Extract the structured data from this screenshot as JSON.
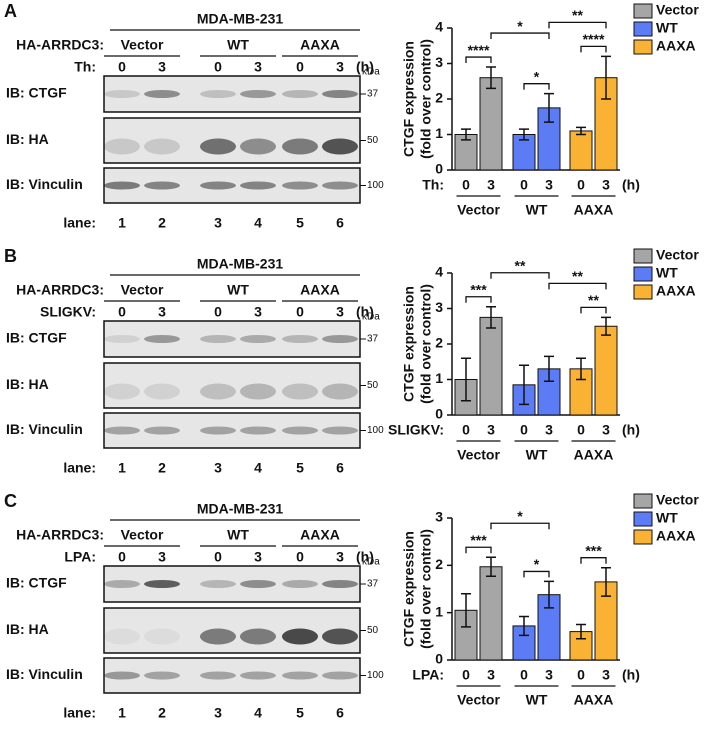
{
  "panels": [
    {
      "letter": "A",
      "blot": {
        "title": "MDA-MB-231",
        "construct_label": "HA-ARRDC3:",
        "groups": [
          "Vector",
          "WT",
          "AAXA"
        ],
        "treatment_label": "Th:",
        "times": [
          "0",
          "3",
          "0",
          "3",
          "0",
          "3"
        ],
        "time_unit": "(h)",
        "rows": [
          {
            "label": "IB: CTGF",
            "marker": "37"
          },
          {
            "label": "IB: HA",
            "marker": "50"
          },
          {
            "label": "IB: Vinculin",
            "marker": "100"
          }
        ],
        "marker_unit": "kDa",
        "lane_label": "lane:",
        "lanes": [
          "1",
          "2",
          "3",
          "4",
          "5",
          "6"
        ]
      }
    },
    {
      "letter": "B",
      "blot": {
        "title": "MDA-MB-231",
        "construct_label": "HA-ARRDC3:",
        "groups": [
          "Vector",
          "WT",
          "AAXA"
        ],
        "treatment_label": "SLIGKV:",
        "times": [
          "0",
          "3",
          "0",
          "3",
          "0",
          "3"
        ],
        "time_unit": "(h)",
        "rows": [
          {
            "label": "IB: CTGF",
            "marker": "37"
          },
          {
            "label": "IB: HA",
            "marker": "50"
          },
          {
            "label": "IB: Vinculin",
            "marker": "100"
          }
        ],
        "marker_unit": "kDa",
        "lane_label": "lane:",
        "lanes": [
          "1",
          "2",
          "3",
          "4",
          "5",
          "6"
        ]
      }
    },
    {
      "letter": "C",
      "blot": {
        "title": "MDA-MB-231",
        "construct_label": "HA-ARRDC3:",
        "groups": [
          "Vector",
          "WT",
          "AAXA"
        ],
        "treatment_label": "LPA:",
        "times": [
          "0",
          "3",
          "0",
          "3",
          "0",
          "3"
        ],
        "time_unit": "(h)",
        "rows": [
          {
            "label": "IB: CTGF",
            "marker": "37"
          },
          {
            "label": "IB: HA",
            "marker": "50"
          },
          {
            "label": "IB: Vinculin",
            "marker": "100"
          }
        ],
        "marker_unit": "kDa",
        "lane_label": "lane:",
        "lanes": [
          "1",
          "2",
          "3",
          "4",
          "5",
          "6"
        ]
      }
    }
  ],
  "chart_data": [
    {
      "type": "bar",
      "y_label": [
        "CTGF expression",
        "(fold over control)"
      ],
      "ylim": [
        0,
        4
      ],
      "yticks": [
        0,
        1,
        2,
        3,
        4
      ],
      "categories": [
        "0",
        "3"
      ],
      "treatment_label": "Th:",
      "time_unit": "(h)",
      "series": [
        {
          "name": "Vector",
          "color": "#a6a6a6",
          "values": [
            1.0,
            2.6
          ],
          "errors": [
            0.15,
            0.3
          ]
        },
        {
          "name": "WT",
          "color": "#5b7cf5",
          "values": [
            1.0,
            1.75
          ],
          "errors": [
            0.15,
            0.4
          ]
        },
        {
          "name": "AAXA",
          "color": "#f9b233",
          "values": [
            1.1,
            2.6
          ],
          "errors": [
            0.1,
            0.6
          ]
        }
      ],
      "annotations": [
        "****",
        "*",
        "****",
        "*",
        "**"
      ]
    },
    {
      "type": "bar",
      "y_label": [
        "CTGF expression",
        "(fold over control)"
      ],
      "ylim": [
        0,
        4
      ],
      "yticks": [
        0,
        1,
        2,
        3,
        4
      ],
      "categories": [
        "0",
        "3"
      ],
      "treatment_label": "SLIGKV:",
      "time_unit": "(h)",
      "series": [
        {
          "name": "Vector",
          "color": "#a6a6a6",
          "values": [
            1.0,
            2.75
          ],
          "errors": [
            0.6,
            0.3
          ]
        },
        {
          "name": "WT",
          "color": "#5b7cf5",
          "values": [
            0.85,
            1.3
          ],
          "errors": [
            0.55,
            0.35
          ]
        },
        {
          "name": "AAXA",
          "color": "#f9b233",
          "values": [
            1.3,
            2.5
          ],
          "errors": [
            0.3,
            0.25
          ]
        }
      ],
      "annotations": [
        "***",
        "**",
        "**",
        "**"
      ]
    },
    {
      "type": "bar",
      "y_label": [
        "CTGF expression",
        "(fold over control)"
      ],
      "ylim": [
        0,
        3
      ],
      "yticks": [
        0,
        1,
        2,
        3
      ],
      "categories": [
        "0",
        "3"
      ],
      "treatment_label": "LPA:",
      "time_unit": "(h)",
      "series": [
        {
          "name": "Vector",
          "color": "#a6a6a6",
          "values": [
            1.05,
            1.97
          ],
          "errors": [
            0.35,
            0.2
          ]
        },
        {
          "name": "WT",
          "color": "#5b7cf5",
          "values": [
            0.72,
            1.38
          ],
          "errors": [
            0.2,
            0.28
          ]
        },
        {
          "name": "AAXA",
          "color": "#f9b233",
          "values": [
            0.6,
            1.65
          ],
          "errors": [
            0.15,
            0.3
          ]
        }
      ],
      "annotations": [
        "***",
        "*",
        "*",
        "***"
      ]
    }
  ]
}
